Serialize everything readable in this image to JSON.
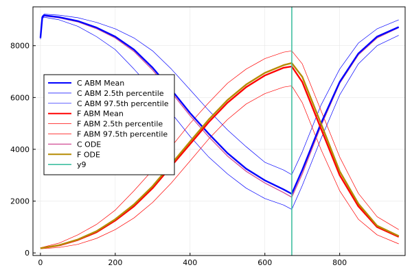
{
  "chart_data": {
    "type": "line",
    "title": "",
    "xlabel": "",
    "ylabel": "",
    "xlim": [
      -20,
      975
    ],
    "ylim": [
      -100,
      9500
    ],
    "grid": true,
    "legend_position": "center-left",
    "x_ticks": [
      0,
      200,
      400,
      600,
      800
    ],
    "y_ticks": [
      0,
      2000,
      4000,
      6000,
      8000
    ],
    "x_tick_labels": [
      "0",
      "200",
      "400",
      "600",
      "800"
    ],
    "y_tick_labels": [
      "0",
      "2000",
      "4000",
      "6000",
      "8000"
    ],
    "vline": {
      "name": "y9",
      "x": 672,
      "color": "#3fbfa0"
    },
    "series": [
      {
        "name": "C ABM Mean",
        "color": "#0000ff",
        "width": 2.4,
        "x": [
          0,
          5,
          10,
          50,
          100,
          150,
          200,
          250,
          300,
          350,
          400,
          450,
          500,
          550,
          600,
          650,
          672,
          700,
          750,
          800,
          850,
          900,
          958
        ],
        "y": [
          8300,
          9100,
          9170,
          9100,
          8950,
          8700,
          8350,
          7850,
          7150,
          6300,
          5400,
          4600,
          3850,
          3250,
          2800,
          2450,
          2280,
          3200,
          5000,
          6600,
          7700,
          8350,
          8720
        ]
      },
      {
        "name": "C ABM 2.5th percentile",
        "color": "#0000ff",
        "width": 0.7,
        "x": [
          0,
          5,
          10,
          50,
          100,
          150,
          200,
          250,
          300,
          350,
          400,
          450,
          500,
          550,
          600,
          650,
          672,
          700,
          750,
          800,
          850,
          900,
          958
        ],
        "y": [
          8250,
          9050,
          9100,
          9000,
          8750,
          8350,
          7850,
          7100,
          6300,
          5400,
          4500,
          3700,
          3050,
          2500,
          2100,
          1850,
          1680,
          2600,
          4400,
          6100,
          7300,
          8000,
          8400
        ]
      },
      {
        "name": "C ABM 97.5th percentile",
        "color": "#0000ff",
        "width": 0.7,
        "x": [
          0,
          5,
          10,
          50,
          100,
          150,
          200,
          250,
          300,
          350,
          400,
          450,
          500,
          550,
          600,
          650,
          672,
          700,
          750,
          800,
          850,
          900,
          958
        ],
        "y": [
          8350,
          9150,
          9220,
          9180,
          9080,
          8900,
          8650,
          8300,
          7800,
          7100,
          6300,
          5500,
          4750,
          4100,
          3500,
          3200,
          3020,
          3900,
          5700,
          7100,
          8100,
          8650,
          9000
        ]
      },
      {
        "name": "F ABM Mean",
        "color": "#ff0000",
        "width": 2.4,
        "x": [
          0,
          50,
          100,
          150,
          200,
          250,
          300,
          350,
          400,
          450,
          500,
          550,
          600,
          650,
          672,
          700,
          750,
          800,
          850,
          900,
          958
        ],
        "y": [
          180,
          290,
          500,
          800,
          1250,
          1800,
          2500,
          3350,
          4200,
          5050,
          5800,
          6400,
          6850,
          7150,
          7200,
          6600,
          4800,
          3000,
          1800,
          1000,
          620
        ]
      },
      {
        "name": "F ABM 2.5th percentile",
        "color": "#ff0000",
        "width": 0.7,
        "x": [
          0,
          50,
          100,
          150,
          200,
          250,
          300,
          350,
          400,
          450,
          500,
          550,
          600,
          650,
          672,
          700,
          750,
          800,
          850,
          900,
          958
        ],
        "y": [
          160,
          210,
          330,
          560,
          900,
          1350,
          1950,
          2700,
          3550,
          4400,
          5150,
          5750,
          6150,
          6400,
          6450,
          5800,
          4000,
          2400,
          1300,
          700,
          350
        ]
      },
      {
        "name": "F ABM 97.5th percentile",
        "color": "#ff0000",
        "width": 0.7,
        "x": [
          0,
          50,
          100,
          150,
          200,
          250,
          300,
          350,
          400,
          450,
          500,
          550,
          600,
          650,
          672,
          700,
          750,
          800,
          850,
          900,
          958
        ],
        "y": [
          200,
          380,
          700,
          1100,
          1650,
          2400,
          3200,
          4100,
          5000,
          5800,
          6550,
          7100,
          7500,
          7750,
          7800,
          7300,
          5500,
          3700,
          2300,
          1400,
          900
        ]
      },
      {
        "name": "C ODE",
        "color": "#d3569a",
        "width": 1.4,
        "x": [
          0,
          5,
          10,
          50,
          100,
          150,
          200,
          250,
          300,
          350,
          400,
          450,
          500,
          550,
          600,
          650,
          672,
          700,
          750,
          800,
          850,
          900,
          958
        ],
        "y": [
          8300,
          9080,
          9150,
          9080,
          8920,
          8660,
          8300,
          7780,
          7060,
          6200,
          5300,
          4480,
          3740,
          3150,
          2700,
          2330,
          2150,
          3050,
          4900,
          6550,
          7650,
          8300,
          8700
        ]
      },
      {
        "name": "F ODE",
        "color": "#b58a00",
        "width": 2.4,
        "x": [
          0,
          50,
          100,
          150,
          200,
          250,
          300,
          350,
          400,
          450,
          500,
          550,
          600,
          650,
          672,
          700,
          750,
          800,
          850,
          900,
          958
        ],
        "y": [
          180,
          300,
          520,
          840,
          1300,
          1870,
          2580,
          3430,
          4300,
          5150,
          5900,
          6500,
          6950,
          7250,
          7330,
          6800,
          5000,
          3150,
          1900,
          1050,
          650
        ]
      }
    ]
  }
}
